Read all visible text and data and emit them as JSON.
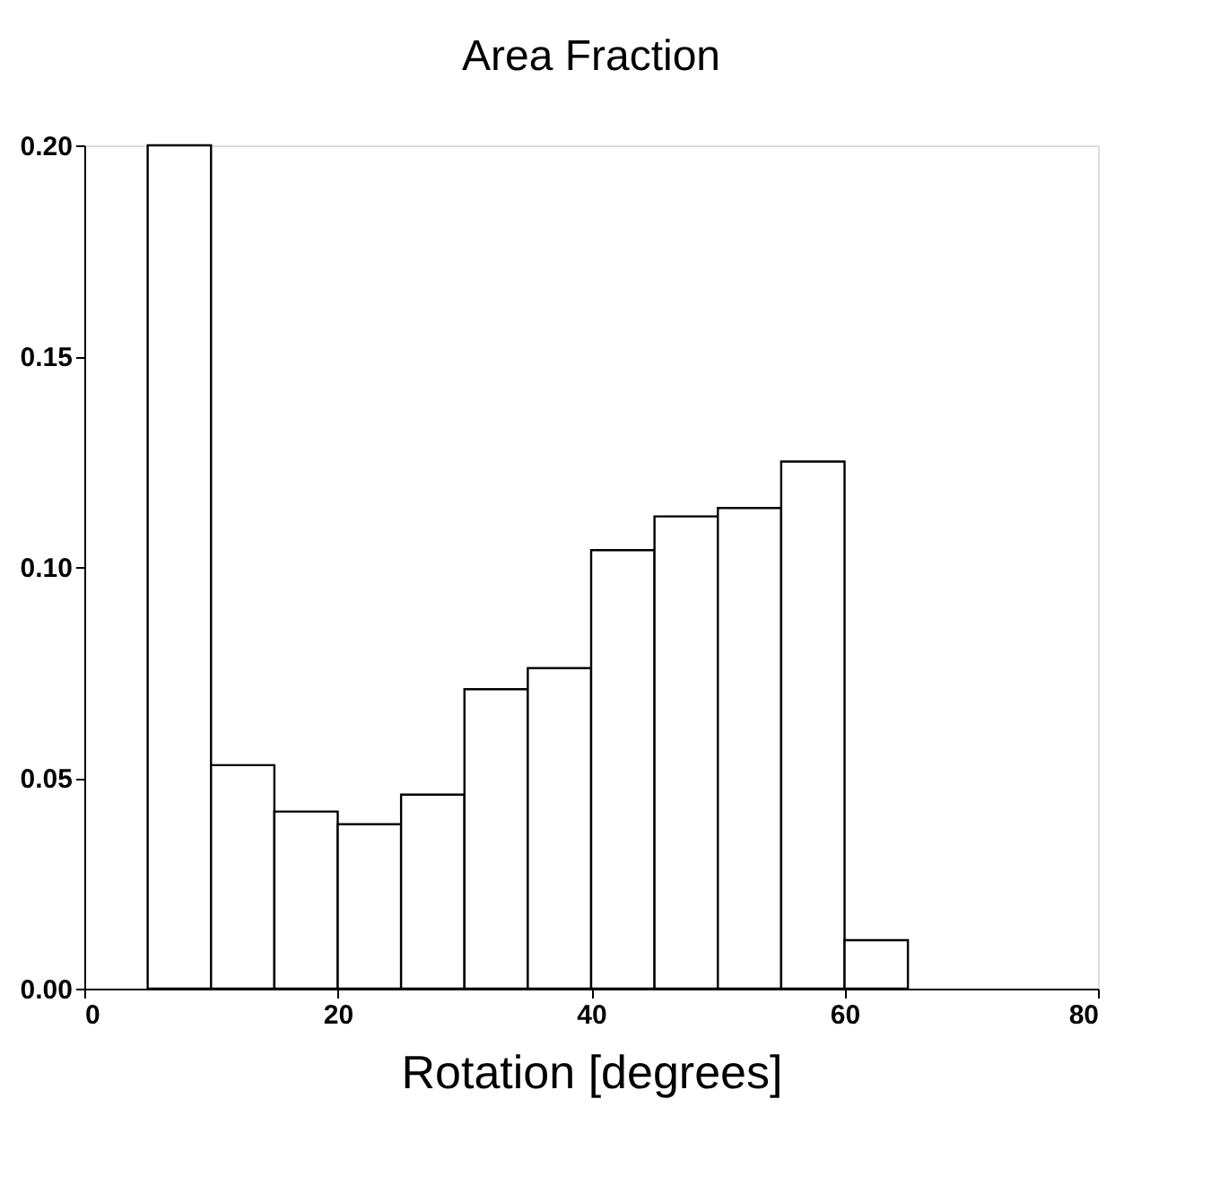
{
  "chart_data": {
    "type": "histogram",
    "title": "Area Fraction",
    "xlabel": "Rotation [degrees]",
    "bins": [
      5,
      10,
      15,
      20,
      25,
      30,
      35,
      40,
      45,
      50,
      55,
      60,
      65
    ],
    "values": [
      0.2,
      0.053,
      0.042,
      0.039,
      0.046,
      0.071,
      0.076,
      0.104,
      0.112,
      0.114,
      0.125,
      0.0115
    ],
    "color": "#ffffff",
    "xlim": [
      0,
      80
    ],
    "xticks": [
      0,
      20,
      40,
      60,
      80
    ],
    "ylim": [
      0,
      0.2
    ],
    "yticks": [
      {
        "value": 0,
        "label": "0.00"
      },
      {
        "value": 0.05,
        "label": "0.05"
      },
      {
        "value": 0.1,
        "label": "0.10"
      },
      {
        "value": 0.15,
        "label": "0.15"
      },
      {
        "value": 0.2,
        "label": "0.20"
      }
    ],
    "grid": false
  }
}
